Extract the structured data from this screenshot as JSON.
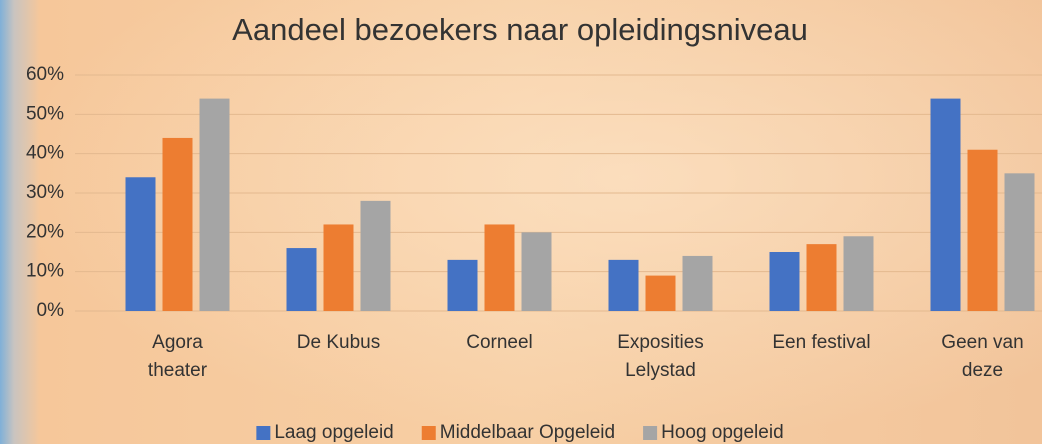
{
  "chart_data": {
    "type": "bar",
    "title": "Aandeel bezoekers naar opleidingsniveau",
    "categories": [
      "Agora theater",
      "De Kubus",
      "Corneel",
      "Exposities Lelystad",
      "Een festival",
      "Geen van deze"
    ],
    "series": [
      {
        "name": "Laag opgeleid",
        "color": "#4472c4",
        "values": [
          34,
          16,
          13,
          13,
          15,
          54
        ]
      },
      {
        "name": "Middelbaar Opgeleid",
        "color": "#ed7d31",
        "values": [
          44,
          22,
          22,
          9,
          17,
          41
        ]
      },
      {
        "name": "Hoog opgeleid",
        "color": "#a5a5a5",
        "values": [
          54,
          28,
          20,
          14,
          19,
          35
        ]
      }
    ],
    "ylim": [
      0,
      60
    ],
    "yticks": [
      {
        "value": 0,
        "label": "0%"
      },
      {
        "value": 10,
        "label": "10%"
      },
      {
        "value": 20,
        "label": "20%"
      },
      {
        "value": 30,
        "label": "30%"
      },
      {
        "value": 40,
        "label": "40%"
      },
      {
        "value": 50,
        "label": "50%"
      },
      {
        "value": 60,
        "label": "60%"
      }
    ],
    "grid": true,
    "legend": "bottom"
  }
}
